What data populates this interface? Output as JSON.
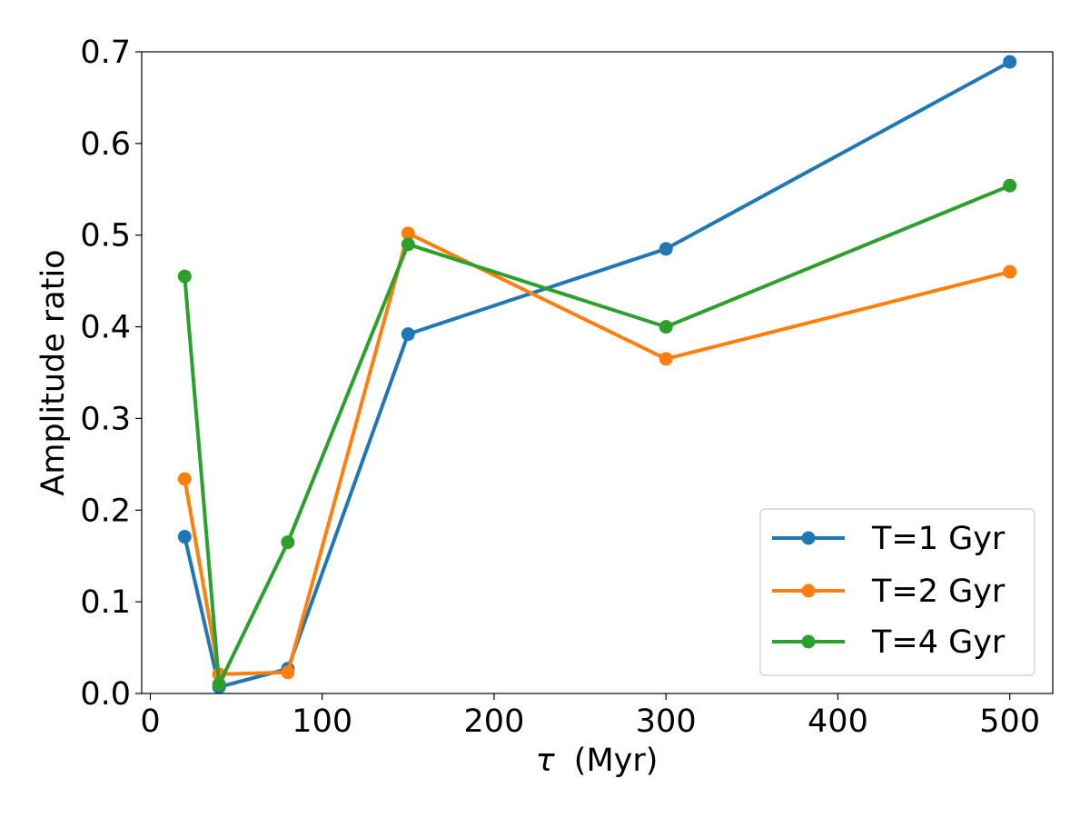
{
  "chart_data": {
    "type": "line",
    "title": "",
    "xlabel_symbol": "τ",
    "xlabel_unit": "(Myr)",
    "ylabel": "Amplitude ratio",
    "xlim": [
      -5,
      525
    ],
    "ylim": [
      0,
      0.7
    ],
    "xticks": [
      0,
      100,
      200,
      300,
      400,
      500
    ],
    "yticks": [
      0.0,
      0.1,
      0.2,
      0.3,
      0.4,
      0.5,
      0.6,
      0.7
    ],
    "xtick_labels": [
      "0",
      "100",
      "200",
      "300",
      "400",
      "500"
    ],
    "ytick_labels": [
      "0.0",
      "0.1",
      "0.2",
      "0.3",
      "0.4",
      "0.5",
      "0.6",
      "0.7"
    ],
    "x": [
      20,
      40,
      80,
      150,
      300,
      500
    ],
    "grid": false,
    "legend_position": "lower-right",
    "series": [
      {
        "name": "T=1 Gyr",
        "color": "#1f77b4",
        "values": [
          0.171,
          0.007,
          0.027,
          0.392,
          0.485,
          0.689
        ]
      },
      {
        "name": "T=2 Gyr",
        "color": "#ff7f0e",
        "values": [
          0.234,
          0.021,
          0.023,
          0.502,
          0.365,
          0.46
        ]
      },
      {
        "name": "T=4 Gyr",
        "color": "#2ca02c",
        "values": [
          0.455,
          0.01,
          0.165,
          0.49,
          0.4,
          0.554
        ]
      }
    ]
  }
}
